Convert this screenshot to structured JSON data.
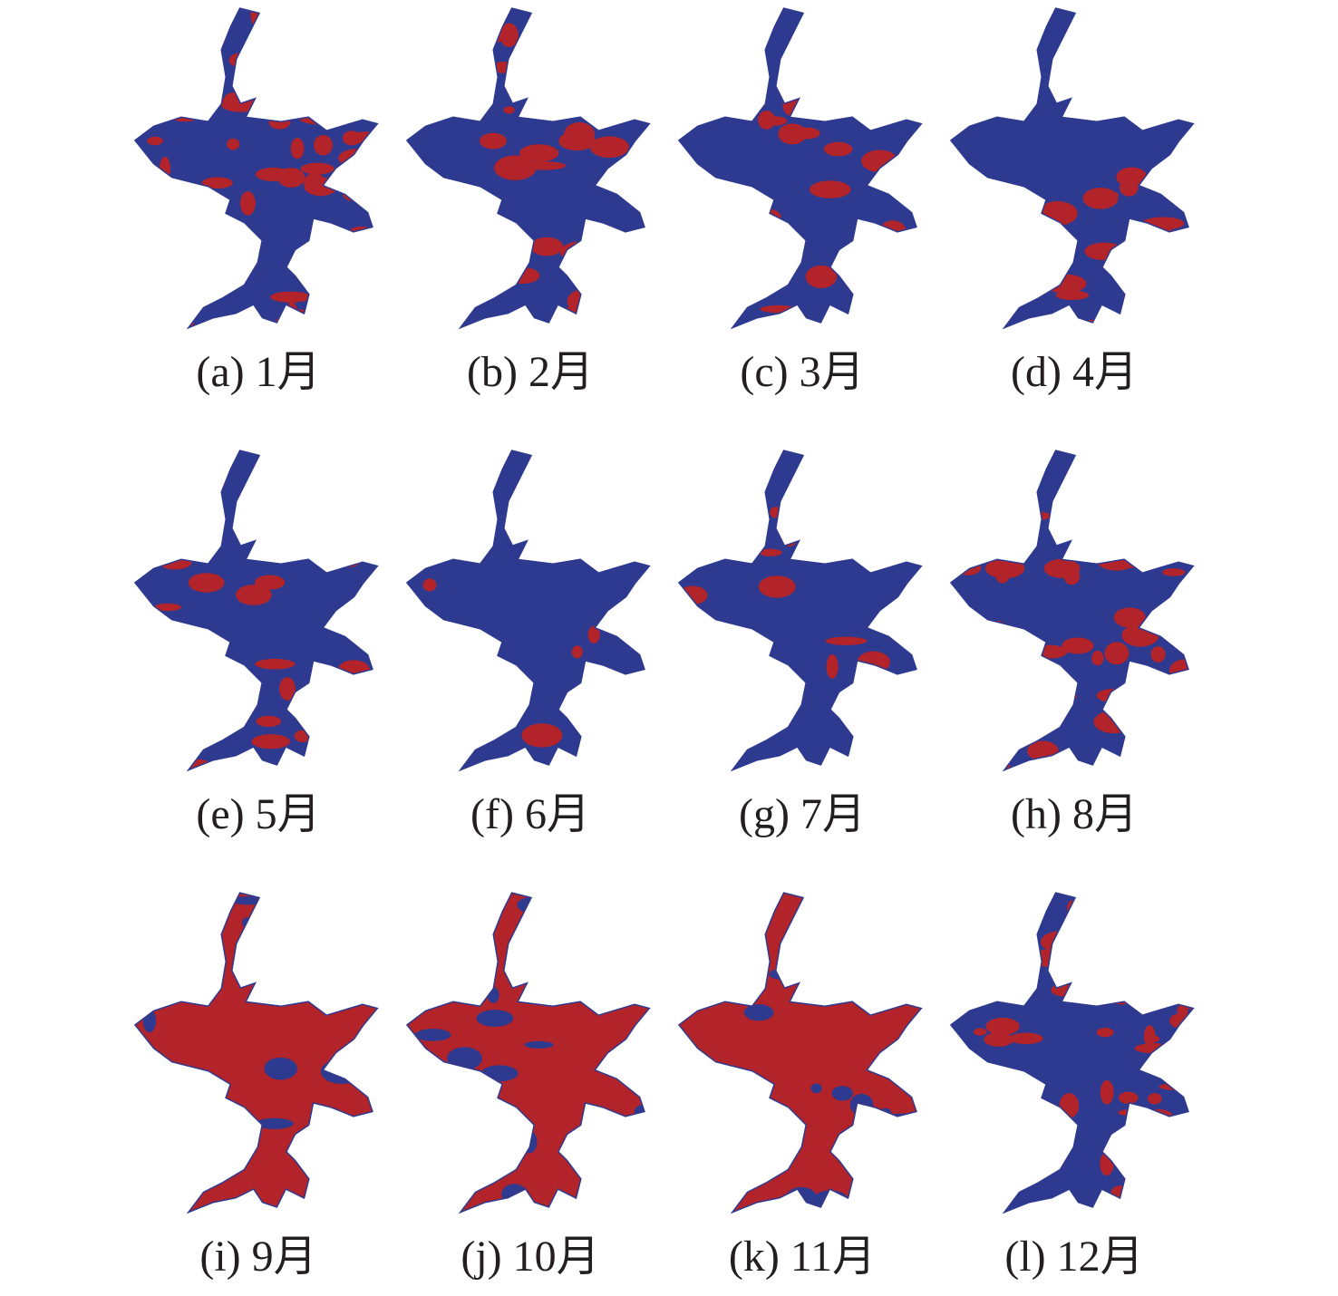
{
  "panels": [
    {
      "label": "(a) 1月"
    },
    {
      "label": "(b) 2月"
    },
    {
      "label": "(c) 3月"
    },
    {
      "label": "(d) 4月"
    },
    {
      "label": "(e) 5月"
    },
    {
      "label": "(f) 6月"
    },
    {
      "label": "(g) 7月"
    },
    {
      "label": "(h) 8月"
    },
    {
      "label": "(i) 9月"
    },
    {
      "label": "(j) 10月"
    },
    {
      "label": "(k) 11月"
    },
    {
      "label": "(l) 12月"
    }
  ]
}
